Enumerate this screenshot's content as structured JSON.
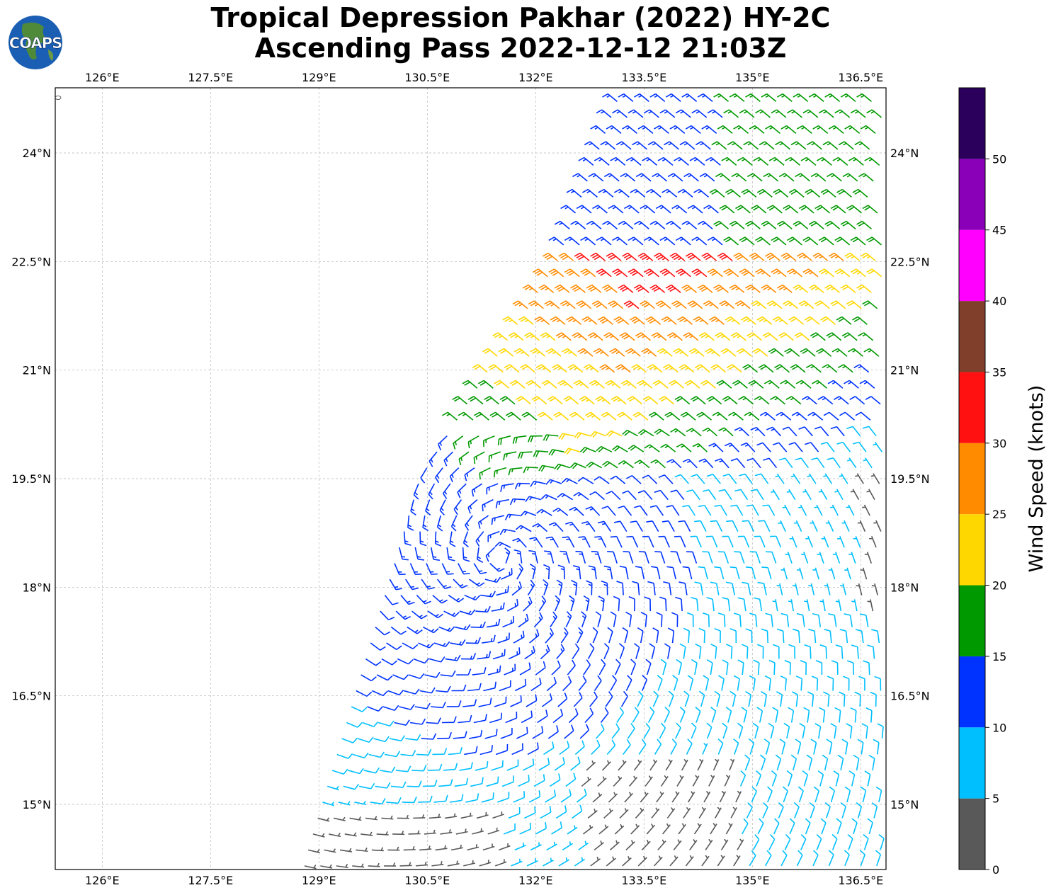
{
  "title": {
    "line1": "Tropical Depression Pakhar (2022) HY-2C",
    "line2": "Ascending Pass 2022-12-12 21:03Z"
  },
  "logo": {
    "text": "COAPS",
    "icon": "globe-icon"
  },
  "map": {
    "lon_range": [
      125.35,
      136.85
    ],
    "lat_range": [
      14.1,
      24.9
    ],
    "lon_ticks": [
      126,
      127.5,
      129,
      130.5,
      132,
      133.5,
      135,
      136.5
    ],
    "lat_ticks": [
      15,
      16.5,
      18,
      19.5,
      21,
      22.5,
      24
    ],
    "lon_tick_labels": [
      "126°E",
      "127.5°E",
      "129°E",
      "130.5°E",
      "132°E",
      "133.5°E",
      "135°E",
      "136.5°E"
    ],
    "lat_tick_labels": [
      "15°N",
      "16.5°N",
      "18°N",
      "19.5°N",
      "21°N",
      "22.5°N",
      "24°N"
    ],
    "grid": true,
    "storm_center": {
      "lon": 131.5,
      "lat": 18.4
    },
    "swath_left_edge": [
      [
        128.8,
        14.2
      ],
      [
        130.4,
        19.5
      ],
      [
        132.3,
        22.5
      ],
      [
        133.2,
        24.9
      ]
    ]
  },
  "colorbar": {
    "label": "Wind Speed (knots)",
    "ticks": [
      0,
      5,
      10,
      15,
      20,
      25,
      30,
      35,
      40,
      45,
      50
    ],
    "colors": [
      "#595959",
      "#00bfff",
      "#0033ff",
      "#009900",
      "#ffd700",
      "#ff8c00",
      "#ff1111",
      "#7f3f2a",
      "#ff00ff",
      "#8a00b8",
      "#2a005c"
    ]
  }
}
